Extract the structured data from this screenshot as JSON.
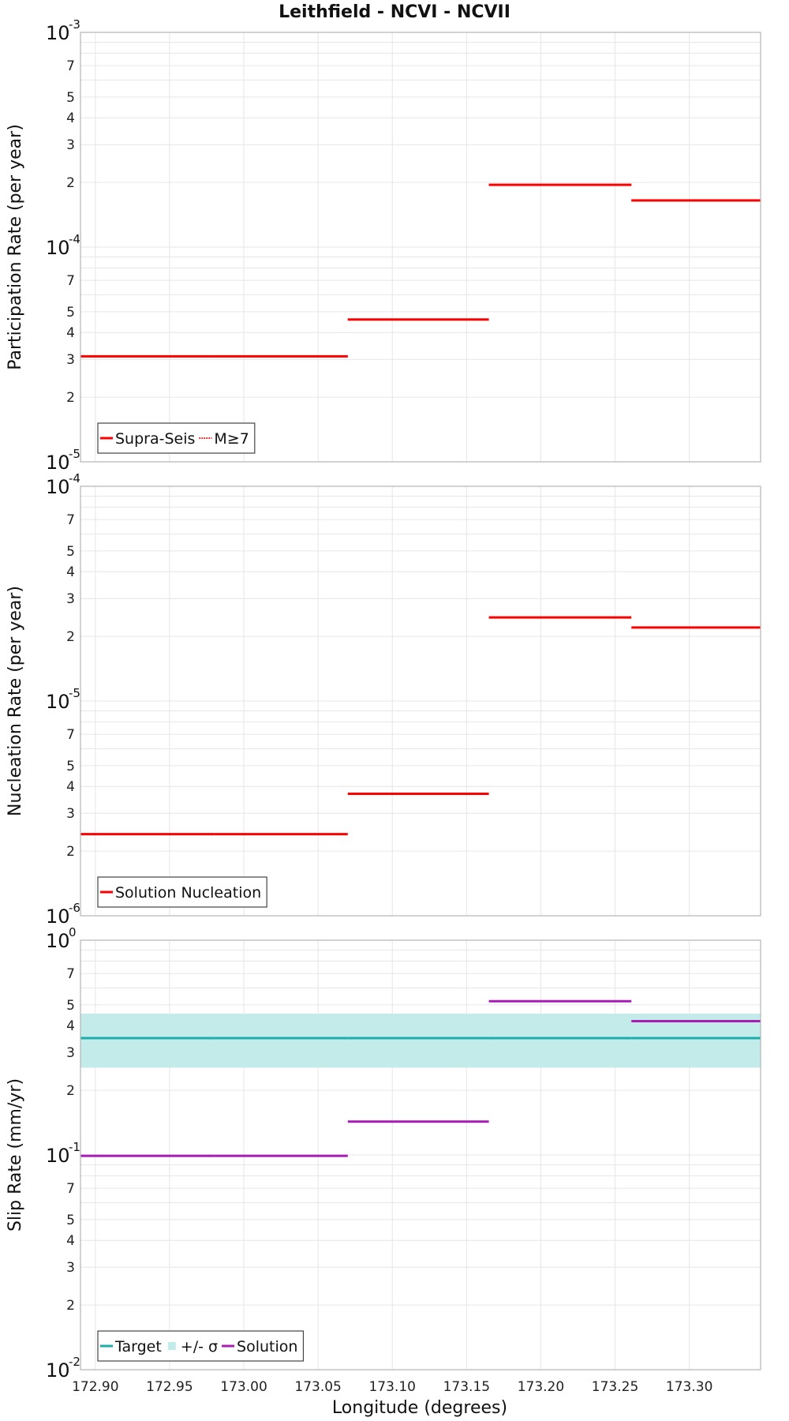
{
  "title": "Leithfield - NCVI - NCVII",
  "xlabel": "Longitude (degrees)",
  "x_ticks": [
    "172.90",
    "172.95",
    "173.00",
    "173.05",
    "173.10",
    "173.15",
    "173.20",
    "173.25",
    "173.30"
  ],
  "chart_data": [
    {
      "type": "line",
      "ylabel": "Participation Rate (per year)",
      "yscale": "log",
      "ylim": [
        1e-05,
        0.001
      ],
      "xlim": [
        172.89,
        173.348
      ],
      "decade_labels": [
        {
          "base": "10",
          "exp": "-5"
        },
        {
          "base": "10",
          "exp": "-4"
        },
        {
          "base": "10",
          "exp": "-3"
        }
      ],
      "minor_labels": [
        "2",
        "3",
        "4",
        "5",
        "7"
      ],
      "grid": true,
      "legend": "bottom-left",
      "series": [
        {
          "name": "Supra-Seis",
          "color": "#ff0000",
          "style": "solid",
          "segments": [
            {
              "x": [
                172.89,
                172.98
              ],
              "y": 3.1e-05
            },
            {
              "x": [
                172.98,
                173.07
              ],
              "y": 3.1e-05
            },
            {
              "x": [
                173.07,
                173.165
              ],
              "y": 4.6e-05
            },
            {
              "x": [
                173.165,
                173.261
              ],
              "y": 0.000195
            },
            {
              "x": [
                173.261,
                173.348
              ],
              "y": 0.000165
            }
          ]
        },
        {
          "name": "M≥7",
          "color": "#ff0000",
          "style": "dotted",
          "segments": [
            {
              "x": [
                172.89,
                172.98
              ],
              "y": 3.1e-05
            },
            {
              "x": [
                172.98,
                173.07
              ],
              "y": 3.1e-05
            },
            {
              "x": [
                173.07,
                173.165
              ],
              "y": 4.6e-05
            },
            {
              "x": [
                173.165,
                173.261
              ],
              "y": 0.000195
            },
            {
              "x": [
                173.261,
                173.348
              ],
              "y": 0.000165
            }
          ]
        }
      ]
    },
    {
      "type": "line",
      "ylabel": "Nucleation Rate (per year)",
      "yscale": "log",
      "ylim": [
        1e-06,
        0.0001
      ],
      "xlim": [
        172.89,
        173.348
      ],
      "decade_labels": [
        {
          "base": "10",
          "exp": "-6"
        },
        {
          "base": "10",
          "exp": "-5"
        },
        {
          "base": "10",
          "exp": "-4"
        }
      ],
      "minor_labels": [
        "2",
        "3",
        "4",
        "5",
        "7"
      ],
      "grid": true,
      "legend": "bottom-left",
      "series": [
        {
          "name": "Solution Nucleation",
          "color": "#ff0000",
          "style": "solid",
          "segments": [
            {
              "x": [
                172.89,
                172.98
              ],
              "y": 2.4e-06
            },
            {
              "x": [
                172.98,
                173.07
              ],
              "y": 2.4e-06
            },
            {
              "x": [
                173.07,
                173.165
              ],
              "y": 3.7e-06
            },
            {
              "x": [
                173.165,
                173.261
              ],
              "y": 2.45e-05
            },
            {
              "x": [
                173.261,
                173.348
              ],
              "y": 2.2e-05
            }
          ]
        }
      ]
    },
    {
      "type": "line",
      "ylabel": "Slip Rate (mm/yr)",
      "yscale": "log",
      "ylim": [
        0.01,
        1
      ],
      "xlim": [
        172.89,
        173.348
      ],
      "decade_labels": [
        {
          "base": "10",
          "exp": "-2"
        },
        {
          "base": "10",
          "exp": "-1"
        },
        {
          "base": "10",
          "exp": "0"
        }
      ],
      "minor_labels": [
        "2",
        "3",
        "4",
        "5",
        "7"
      ],
      "grid": true,
      "legend": "bottom-left",
      "band": {
        "name": "+/- σ",
        "color": "#c3ebe9",
        "y_low": 0.255,
        "y_high": 0.455
      },
      "series": [
        {
          "name": "Target",
          "color": "#1aafaa",
          "style": "solid",
          "segments": [
            {
              "x": [
                172.89,
                172.98
              ],
              "y": 0.35
            },
            {
              "x": [
                172.98,
                173.07
              ],
              "y": 0.35
            },
            {
              "x": [
                173.07,
                173.165
              ],
              "y": 0.35
            },
            {
              "x": [
                173.165,
                173.261
              ],
              "y": 0.35
            },
            {
              "x": [
                173.261,
                173.348
              ],
              "y": 0.35
            }
          ]
        },
        {
          "name": "Solution",
          "color": "#a81cb5",
          "style": "solid",
          "segments": [
            {
              "x": [
                172.89,
                172.98
              ],
              "y": 0.099
            },
            {
              "x": [
                172.98,
                173.07
              ],
              "y": 0.099
            },
            {
              "x": [
                173.07,
                173.165
              ],
              "y": 0.143
            },
            {
              "x": [
                173.165,
                173.261
              ],
              "y": 0.52
            },
            {
              "x": [
                173.261,
                173.348
              ],
              "y": 0.42
            }
          ]
        }
      ]
    }
  ]
}
